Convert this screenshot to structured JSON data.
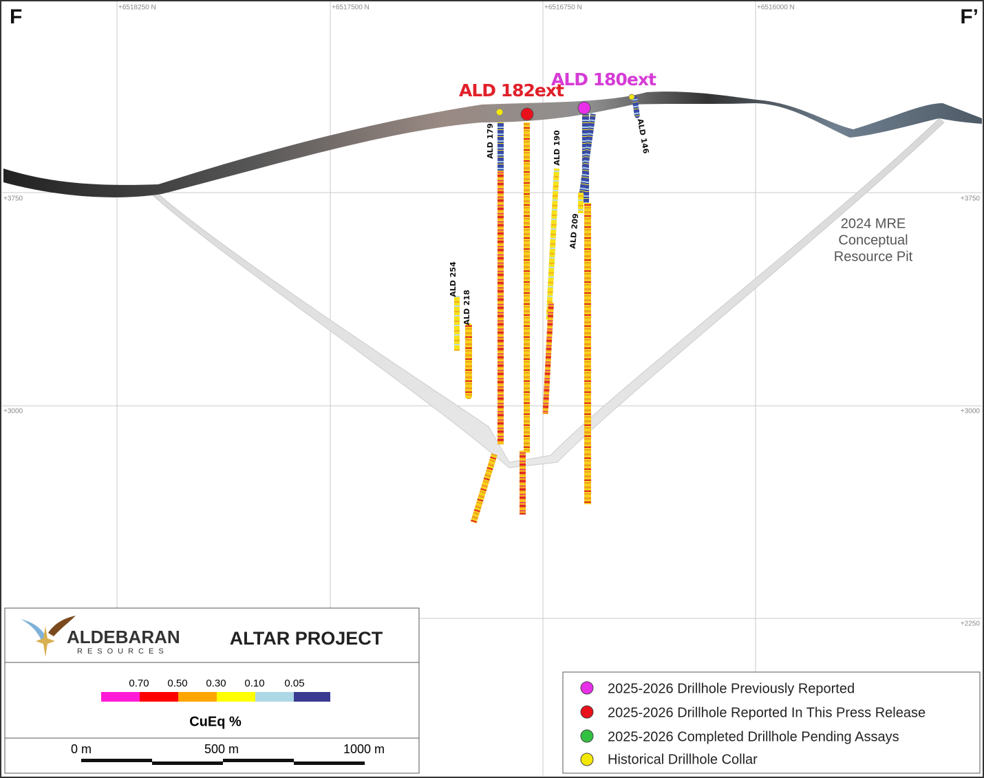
{
  "section": {
    "start": "F",
    "end": "F’"
  },
  "northings": [
    "+6518250 N",
    "+6517500 N",
    "+6516750 N",
    "+6516000 N"
  ],
  "elevations_left": [
    "+3750",
    "+3000"
  ],
  "elevations_right": [
    "+3750",
    "+3000",
    "+2250"
  ],
  "drillholes": {
    "highlight": [
      "ALD 182ext",
      "ALD 180ext"
    ],
    "labels": [
      "ALD 179",
      "ALD 190",
      "ALD 146",
      "ALD 209",
      "ALD 254",
      "ALD 218"
    ]
  },
  "pit_label": [
    "2024 MRE",
    "Conceptual",
    "Resource Pit"
  ],
  "title_block": {
    "company": "ALDEBARAN",
    "company_sub": "RESOURCES",
    "project": "ALTAR PROJECT"
  },
  "grade_scale": {
    "ticks": [
      "0.70",
      "0.50",
      "0.30",
      "0.10",
      "0.05"
    ],
    "label": "CuEq %"
  },
  "scale_bar": [
    "0 m",
    "500 m",
    "1000 m"
  ],
  "legend": [
    "2025-2026 Drillhole Previously Reported",
    "2025-2026 Drillhole Reported In This Press Release",
    "2025-2026 Completed Drillhole Pending Assays",
    "Historical Drillhole Collar"
  ]
}
